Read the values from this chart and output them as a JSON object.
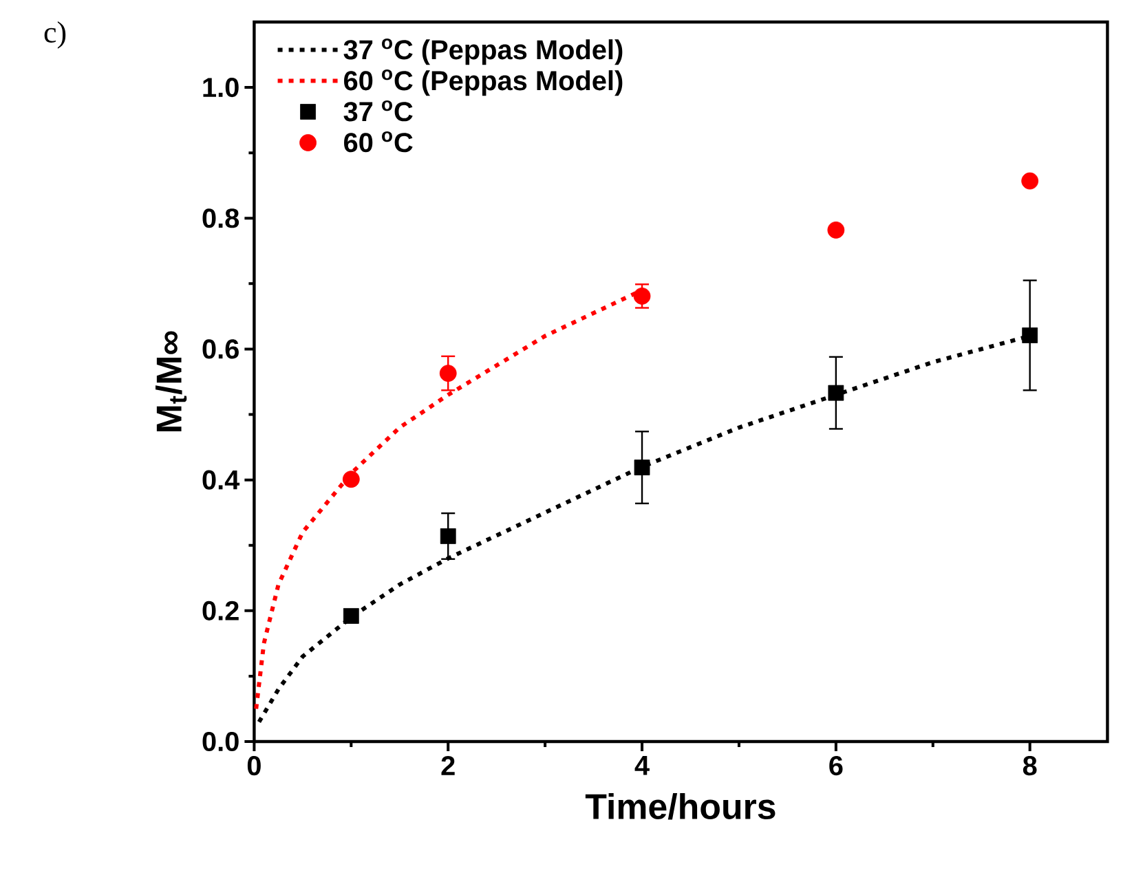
{
  "chart_data": {
    "type": "scatter",
    "xlabel": "Time/hours",
    "ylabel": "M$_{t}$/M∞",
    "annotations": [
      "c)"
    ],
    "xlim": [
      0,
      8.8
    ],
    "ylim": [
      0,
      1.1
    ],
    "xticks": [
      0,
      2,
      4,
      6,
      8
    ],
    "yticks": [
      {
        "value": 0,
        "label": "0.0"
      },
      {
        "value": 0.2,
        "label": "0.2"
      },
      {
        "value": 0.4,
        "label": "0.4"
      },
      {
        "value": 0.6,
        "label": "0.6"
      },
      {
        "value": 0.8,
        "label": "0.8"
      },
      {
        "value": 1.0,
        "label": "1.0"
      }
    ],
    "legend": "top left",
    "series": [
      {
        "name": "37 $^{o}$C (Peppas Model)",
        "type": "line",
        "color": "#000000",
        "line_style": "dotted",
        "marker": "none",
        "x": [
          0.05,
          0.25,
          0.5,
          1,
          1.5,
          2,
          3,
          4,
          5,
          6,
          7,
          8
        ],
        "values": [
          0.03,
          0.08,
          0.13,
          0.19,
          0.24,
          0.28,
          0.35,
          0.42,
          0.48,
          0.53,
          0.58,
          0.62
        ]
      },
      {
        "name": "60 $^{o}$C (Peppas Model)",
        "type": "line",
        "color": "#ff0000",
        "line_style": "dotted",
        "marker": "none",
        "x": [
          0.02,
          0.1,
          0.25,
          0.5,
          1,
          1.5,
          2,
          3,
          4
        ],
        "values": [
          0.05,
          0.15,
          0.24,
          0.32,
          0.41,
          0.48,
          0.53,
          0.62,
          0.69
        ]
      },
      {
        "name": "37 $^{o}$C",
        "color": "#000000",
        "marker": "square",
        "x": [
          1,
          2,
          4,
          6,
          8
        ],
        "values": [
          0.192,
          0.314,
          0.419,
          0.533,
          0.621
        ],
        "errors": [
          null,
          0.035,
          0.055,
          0.055,
          0.084
        ]
      },
      {
        "name": "60 $^{o}$C",
        "color": "#ff0000",
        "marker": "circle",
        "x": [
          1,
          2,
          4,
          6,
          8
        ],
        "values": [
          0.401,
          0.563,
          0.681,
          0.782,
          0.857
        ],
        "errors": [
          null,
          0.026,
          0.018,
          null,
          null
        ]
      }
    ]
  }
}
